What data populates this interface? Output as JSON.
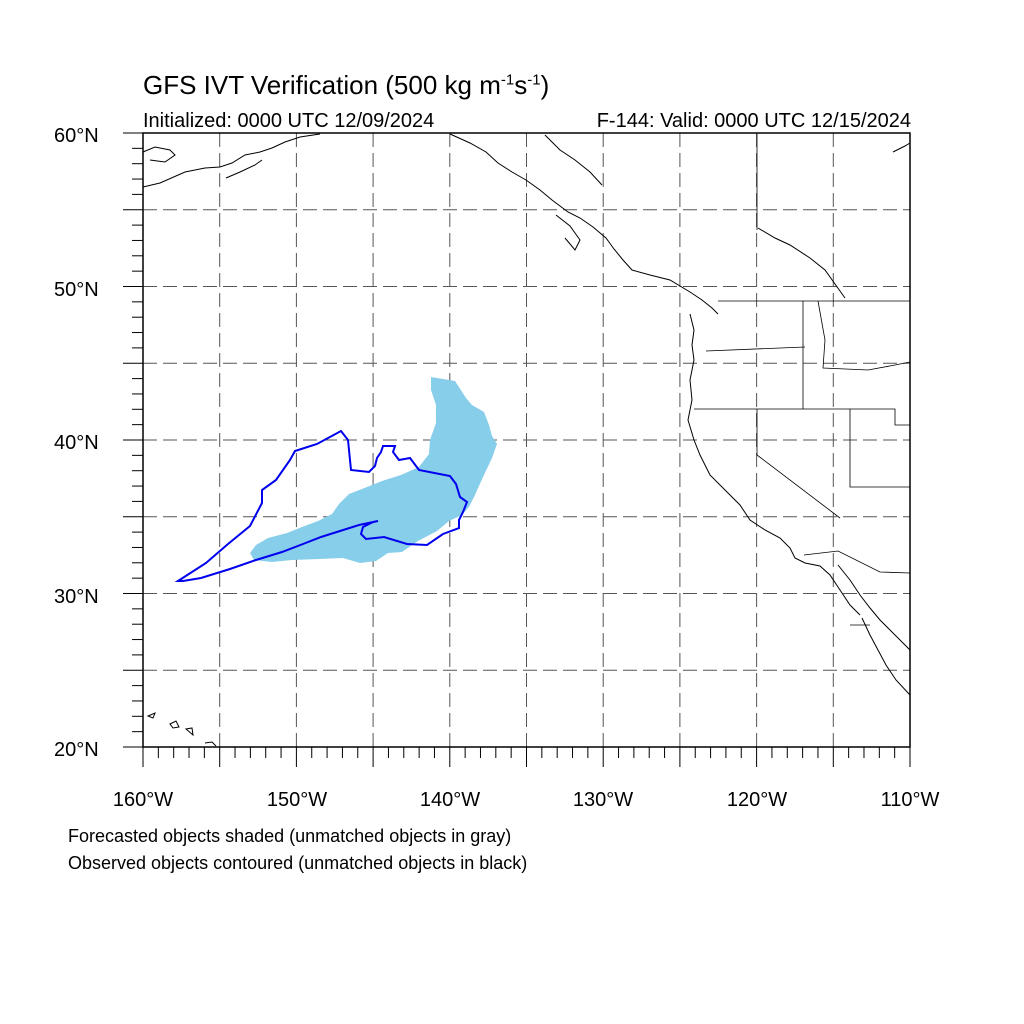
{
  "title": {
    "prefix": "GFS IVT Verification (500 kg m",
    "exp1": "-1",
    "mid": "s",
    "exp2": "-1",
    "suffix": ")"
  },
  "initialized": "Initialized: 0000 UTC 12/09/2024",
  "valid": "F-144: Valid: 0000 UTC 12/15/2024",
  "lat_labels": [
    "20°N",
    "30°N",
    "40°N",
    "50°N",
    "60°N"
  ],
  "lon_labels": [
    "160°W",
    "150°W",
    "140°W",
    "130°W",
    "120°W",
    "110°W"
  ],
  "legend": {
    "forecast_note": "Forecasted objects shaded (unmatched objects in gray)",
    "observed_note": "Observed objects contoured (unmatched objects in black)"
  },
  "colors": {
    "forecast_fill": "#87ceeb",
    "observed_contour": "#0000ee",
    "grid": "#555555",
    "coast": "#000000"
  },
  "map": {
    "lon_range": [
      -160,
      -110
    ],
    "lat_range": [
      20,
      60
    ],
    "grid_spacing_deg": 5
  }
}
